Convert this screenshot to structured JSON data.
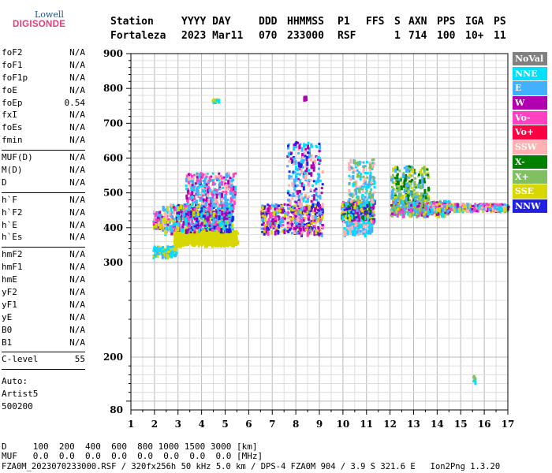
{
  "logo": {
    "line1": "Lowell",
    "line2": "DIGISONDE"
  },
  "header": {
    "labels": {
      "station": "Station",
      "date": "YYYY DAY",
      "ddd": "DDD",
      "time": "HHMMSS",
      "p1": "P1",
      "ffs": "FFS",
      "s": "S",
      "axn": "AXN",
      "pps": "PPS",
      "iga": "IGA",
      "ps": "PS"
    },
    "values": {
      "station": "Fortaleza",
      "date": "2023 Mar11",
      "ddd": "070",
      "time": "233000",
      "p1": "RSF",
      "ffs": "",
      "s": "1",
      "axn": "714",
      "pps": "100",
      "iga": "10+",
      "ps": "11"
    }
  },
  "params": {
    "group1": [
      {
        "name": "foF2",
        "value": "N/A"
      },
      {
        "name": "foF1",
        "value": "N/A"
      },
      {
        "name": "foF1p",
        "value": "N/A"
      },
      {
        "name": "foE",
        "value": "N/A"
      },
      {
        "name": "foEp",
        "value": "0.54"
      },
      {
        "name": "fxI",
        "value": "N/A"
      },
      {
        "name": "foEs",
        "value": "N/A"
      },
      {
        "name": "fmin",
        "value": "N/A"
      }
    ],
    "group2": [
      {
        "name": "MUF(D)",
        "value": "N/A"
      },
      {
        "name": "M(D)",
        "value": "N/A"
      },
      {
        "name": "D",
        "value": "N/A"
      }
    ],
    "group3": [
      {
        "name": "h`F",
        "value": "N/A"
      },
      {
        "name": "h`F2",
        "value": "N/A"
      },
      {
        "name": "h`E",
        "value": "N/A"
      },
      {
        "name": "h`Es",
        "value": "N/A"
      }
    ],
    "group4": [
      {
        "name": "hmF2",
        "value": "N/A"
      },
      {
        "name": "hmF1",
        "value": "N/A"
      },
      {
        "name": "hmE",
        "value": "N/A"
      },
      {
        "name": "yF2",
        "value": "N/A"
      },
      {
        "name": "yF1",
        "value": "N/A"
      },
      {
        "name": "yE",
        "value": "N/A"
      },
      {
        "name": "B0",
        "value": "N/A"
      },
      {
        "name": "B1",
        "value": "N/A"
      }
    ],
    "clevel": {
      "name": "C-level",
      "value": "55"
    },
    "auto": [
      "Auto:",
      "Artist5",
      "500200"
    ]
  },
  "footer": {
    "line1": "D     100  200  400  600  800 1000 1500 3000 [km]",
    "line2": "MUF   0.0  0.0  0.0  0.0  0.0  0.0  0.0  0.0 [MHz]",
    "line3": "FZA0M_2023070233000.RSF / 320fx256h 50 kHz 5.0 km / DPS-4 FZA0M 904 / 3.9 S 321.6 E   Ion2Png 1.3.20"
  },
  "legend": [
    {
      "label": "NoVal",
      "bg": "#808080",
      "fg": "#ffffff"
    },
    {
      "label": "NNE",
      "bg": "#00e0ff",
      "fg": "#ffffff"
    },
    {
      "label": "E",
      "bg": "#40b0ff",
      "fg": "#ffffff"
    },
    {
      "label": "W",
      "bg": "#b000b0",
      "fg": "#ffffff"
    },
    {
      "label": "Vo-",
      "bg": "#ff40c0",
      "fg": "#ffffff"
    },
    {
      "label": "Vo+",
      "bg": "#ff0040",
      "fg": "#ffffff"
    },
    {
      "label": "SSW",
      "bg": "#ffb0b0",
      "fg": "#ffffff"
    },
    {
      "label": "X-",
      "bg": "#008000",
      "fg": "#ffffff"
    },
    {
      "label": "X+",
      "bg": "#80c060",
      "fg": "#ffffff"
    },
    {
      "label": "SSE",
      "bg": "#d8d800",
      "fg": "#ffffff"
    },
    {
      "label": "NNW",
      "bg": "#2020e0",
      "fg": "#ffffff"
    }
  ],
  "chart_data": {
    "type": "scatter",
    "title": "",
    "xlabel": "",
    "ylabel": "",
    "xlim": [
      1,
      17
    ],
    "ylim": [
      80,
      900
    ],
    "xticks": [
      1,
      2,
      3,
      4,
      5,
      6,
      7,
      8,
      9,
      10,
      11,
      12,
      13,
      14,
      15,
      16,
      17
    ],
    "yticks": [
      80,
      200,
      300,
      400,
      500,
      600,
      700,
      800,
      900
    ],
    "grid": true,
    "clusters": [
      {
        "x": [
          1.9,
          2.3
        ],
        "y": [
          400,
          450
        ],
        "density": 10,
        "colors": [
          "SSE",
          "E",
          "W",
          "Vo-",
          "SSW"
        ]
      },
      {
        "x": [
          2.3,
          3.0
        ],
        "y": [
          390,
          470
        ],
        "density": 12,
        "colors": [
          "E",
          "W",
          "SSE",
          "Vo-",
          "NNE",
          "SSW"
        ]
      },
      {
        "x": [
          1.9,
          2.9
        ],
        "y": [
          320,
          350
        ],
        "density": 9,
        "colors": [
          "NNE",
          "E",
          "SSE"
        ]
      },
      {
        "x": [
          2.8,
          5.5
        ],
        "y": [
          355,
          395
        ],
        "density": 22,
        "colors": [
          "SSE"
        ]
      },
      {
        "x": [
          2.9,
          5.3
        ],
        "y": [
          395,
          470
        ],
        "density": 22,
        "colors": [
          "E",
          "NNE",
          "W",
          "SSE",
          "Vo-",
          "NNW"
        ]
      },
      {
        "x": [
          3.3,
          5.4
        ],
        "y": [
          470,
          560
        ],
        "density": 12,
        "colors": [
          "NNE",
          "E",
          "W",
          "SSW",
          "Vo-"
        ]
      },
      {
        "x": [
          4.4,
          4.7
        ],
        "y": [
          768,
          772
        ],
        "density": 3,
        "colors": [
          "NNE",
          "SSE"
        ]
      },
      {
        "x": [
          6.5,
          7.5
        ],
        "y": [
          390,
          470
        ],
        "density": 12,
        "colors": [
          "SSE",
          "E",
          "W",
          "Vo-",
          "NNW"
        ]
      },
      {
        "x": [
          7.6,
          9.1
        ],
        "y": [
          385,
          470
        ],
        "density": 16,
        "colors": [
          "SSE",
          "E",
          "W",
          "NNW",
          "Vo-",
          "SSW"
        ]
      },
      {
        "x": [
          7.6,
          9.1
        ],
        "y": [
          470,
          650
        ],
        "density": 12,
        "colors": [
          "NNE",
          "E",
          "W",
          "NNW",
          "SSW"
        ]
      },
      {
        "x": [
          8.3,
          8.4
        ],
        "y": [
          775,
          780
        ],
        "density": 2,
        "colors": [
          "W"
        ]
      },
      {
        "x": [
          9.9,
          11.3
        ],
        "y": [
          420,
          480
        ],
        "density": 18,
        "colors": [
          "W",
          "E",
          "NNE",
          "SSE",
          "X-",
          "NNW",
          "Vo-"
        ]
      },
      {
        "x": [
          10.0,
          11.2
        ],
        "y": [
          385,
          420
        ],
        "density": 9,
        "colors": [
          "SSW",
          "E",
          "NNE"
        ]
      },
      {
        "x": [
          10.2,
          11.3
        ],
        "y": [
          480,
          600
        ],
        "density": 10,
        "colors": [
          "E",
          "NNE",
          "SSW",
          "X+"
        ]
      },
      {
        "x": [
          12.0,
          14.5
        ],
        "y": [
          440,
          480
        ],
        "density": 18,
        "colors": [
          "W",
          "NNE",
          "E",
          "Vo-",
          "X+",
          "SSE"
        ]
      },
      {
        "x": [
          12.0,
          13.6
        ],
        "y": [
          480,
          580
        ],
        "density": 12,
        "colors": [
          "X-",
          "X+",
          "SSE",
          "E"
        ]
      },
      {
        "x": [
          13.6,
          17.0
        ],
        "y": [
          455,
          472
        ],
        "density": 12,
        "colors": [
          "NNE",
          "W",
          "SSW",
          "SSE",
          "E",
          "Vo-"
        ]
      },
      {
        "x": [
          15.5,
          15.6
        ],
        "y": [
          140,
          160
        ],
        "density": 2,
        "colors": [
          "NNE",
          "X+"
        ]
      }
    ]
  }
}
